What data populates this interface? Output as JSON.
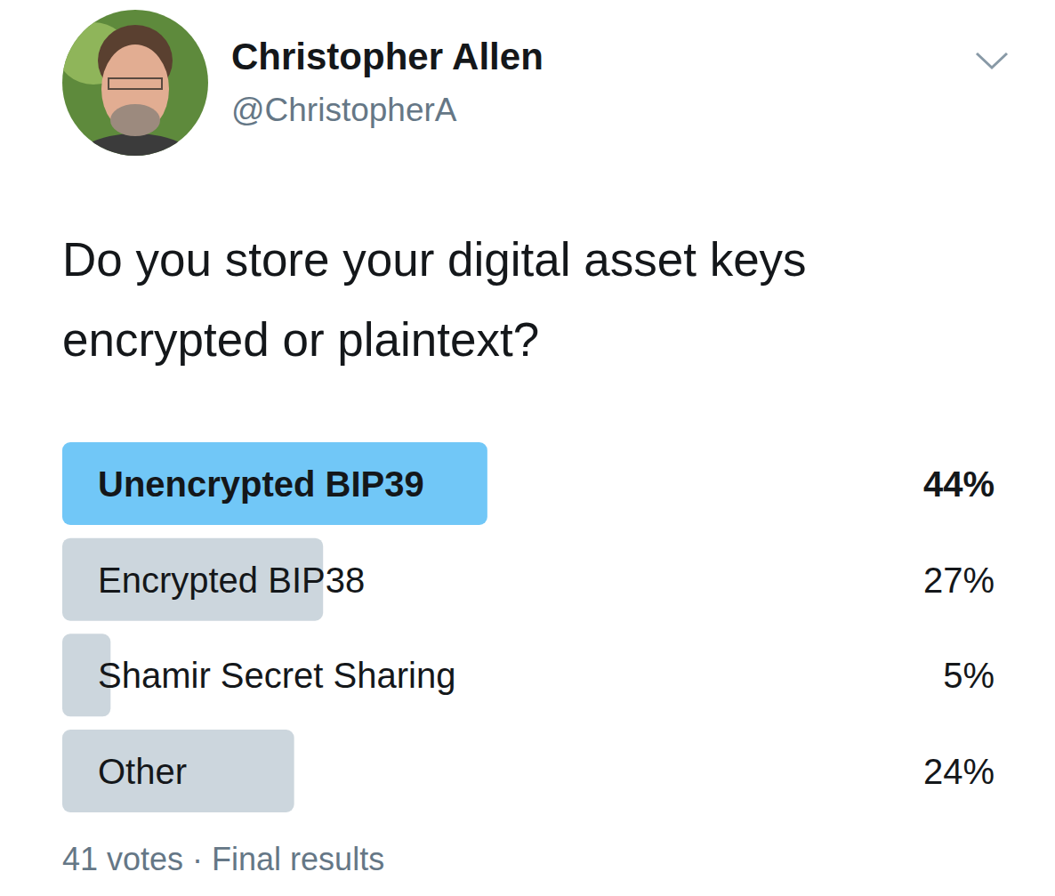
{
  "header": {
    "name": "Christopher Allen",
    "handle": "@ChristopherA"
  },
  "chart_data": {
    "type": "bar",
    "orientation": "horizontal",
    "title": "Do you store your digital asset keys encrypted or plaintext?",
    "categories": [
      "Unencrypted BIP39",
      "Encrypted BIP38",
      "Shamir Secret Sharing",
      "Other"
    ],
    "values": [
      44,
      27,
      5,
      24
    ],
    "value_labels": [
      "44%",
      "27%",
      "5%",
      "24%"
    ],
    "colors": [
      "#71c7f7",
      "#ccd6dd",
      "#ccd6dd",
      "#ccd6dd"
    ],
    "data_labels": true
  },
  "footer": "41 votes · Final results"
}
